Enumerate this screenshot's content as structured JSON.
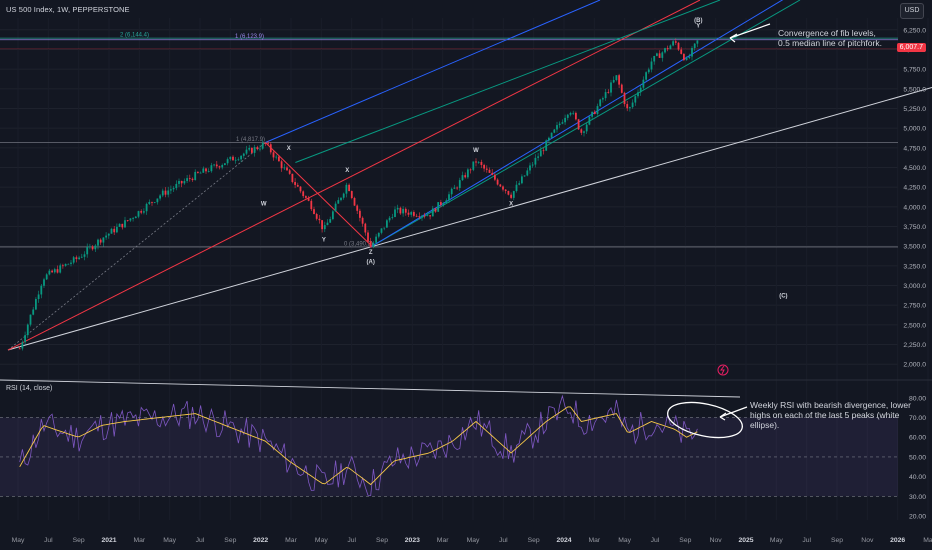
{
  "header": {
    "title": "US 500 Index, 1W, PEPPERSTONE",
    "currency": "USD"
  },
  "rsi": {
    "title": "RSI (14, close)"
  },
  "annotations": {
    "top_note": "Convergence of fib levels,\n0.5 median line of pitchfork.",
    "rsi_note": "Weekly RSI with bearish divergence, lower\nhighs on each of the last 5 peaks (white\nellipse)."
  },
  "price_badge": "6,007.7",
  "chart_data": {
    "type": "candlestick",
    "price_axis": {
      "ticks": [
        "6,250.0",
        "6,000.0",
        "5,750.0",
        "5,500.0",
        "5,250.0",
        "5,000.0",
        "4,750.0",
        "4,500.0",
        "4,250.0",
        "4,000.0",
        "3,750.0",
        "3,500.0",
        "3,250.0",
        "3,000.0",
        "2,750.0",
        "2,500.0",
        "2,250.0",
        "2,000.0"
      ],
      "range": [
        1850,
        6400
      ]
    },
    "rsi_axis": {
      "ticks": [
        "80.00",
        "70.00",
        "60.00",
        "50.00",
        "40.00",
        "30.00",
        "20.00"
      ],
      "range": [
        18,
        86
      ],
      "levels": [
        70,
        50,
        30
      ]
    },
    "time_axis": [
      "May",
      "Jul",
      "Sep",
      "2021",
      "Mar",
      "May",
      "Jul",
      "Sep",
      "2022",
      "Mar",
      "May",
      "Jul",
      "Sep",
      "2023",
      "Mar",
      "May",
      "Jul",
      "Sep",
      "2024",
      "Mar",
      "May",
      "Jul",
      "Sep",
      "Nov",
      "2025",
      "May",
      "Jul",
      "Sep",
      "Nov",
      "2026",
      "Ma"
    ],
    "price_path": [
      [
        "2020-04",
        2200
      ],
      [
        "2020-06",
        3100
      ],
      [
        "2020-09",
        3350
      ],
      [
        "2020-11",
        3600
      ],
      [
        "2021-01",
        3800
      ],
      [
        "2021-04",
        4150
      ],
      [
        "2021-07",
        4400
      ],
      [
        "2021-10",
        4600
      ],
      [
        "2022-01",
        4800
      ],
      [
        "2022-03",
        4400
      ],
      [
        "2022-05",
        4000
      ],
      [
        "2022-06",
        3700
      ],
      [
        "2022-08",
        4300
      ],
      [
        "2022-10",
        3490
      ],
      [
        "2022-12",
        3950
      ],
      [
        "2023-03",
        3900
      ],
      [
        "2023-05",
        4200
      ],
      [
        "2023-07",
        4580
      ],
      [
        "2023-10",
        4150
      ],
      [
        "2024-01",
        4800
      ],
      [
        "2024-03",
        5250
      ],
      [
        "2024-04",
        4950
      ],
      [
        "2024-07",
        5650
      ],
      [
        "2024-08",
        5200
      ],
      [
        "2024-10",
        5850
      ],
      [
        "2024-12",
        6100
      ],
      [
        "2025-01",
        5850
      ],
      [
        "2025-02",
        6120
      ]
    ],
    "rsi_path": [
      [
        "2020-04",
        45
      ],
      [
        "2020-06",
        66
      ],
      [
        "2020-09",
        60
      ],
      [
        "2020-11",
        66
      ],
      [
        "2021-01",
        68
      ],
      [
        "2021-04",
        70
      ],
      [
        "2021-07",
        72
      ],
      [
        "2021-10",
        65
      ],
      [
        "2022-01",
        58
      ],
      [
        "2022-03",
        48
      ],
      [
        "2022-06",
        36
      ],
      [
        "2022-08",
        45
      ],
      [
        "2022-10",
        36
      ],
      [
        "2022-12",
        48
      ],
      [
        "2023-03",
        52
      ],
      [
        "2023-05",
        58
      ],
      [
        "2023-07",
        68
      ],
      [
        "2023-10",
        52
      ],
      [
        "2024-01",
        68
      ],
      [
        "2024-03",
        76
      ],
      [
        "2024-04",
        68
      ],
      [
        "2024-07",
        72
      ],
      [
        "2024-08",
        62
      ],
      [
        "2024-10",
        68
      ],
      [
        "2024-12",
        64
      ],
      [
        "2025-01",
        60
      ],
      [
        "2025-02",
        63
      ]
    ],
    "horizontal_levels": [
      {
        "label": "1 (4,817.9)",
        "value": 4817.9
      },
      {
        "label": "0 (3,490.2)",
        "value": 3490.2
      },
      {
        "label": "2 (6,144.4)",
        "value": 6144.4
      },
      {
        "label": "1 (6,123.9)",
        "value": 6123.9
      }
    ],
    "wave_labels": [
      "X",
      "W",
      "Y",
      "X",
      "Z",
      "(A)",
      "W",
      "X",
      "(B)",
      "Y",
      "(C)"
    ],
    "trendline_points": [
      [
        "2020-03",
        2200
      ],
      [
        "2022-10",
        3490
      ]
    ],
    "pitchfork": {
      "pivot": [
        "2022-01",
        4817.9
      ],
      "lines": [
        "median",
        "upper",
        "lower",
        "outer"
      ]
    }
  }
}
